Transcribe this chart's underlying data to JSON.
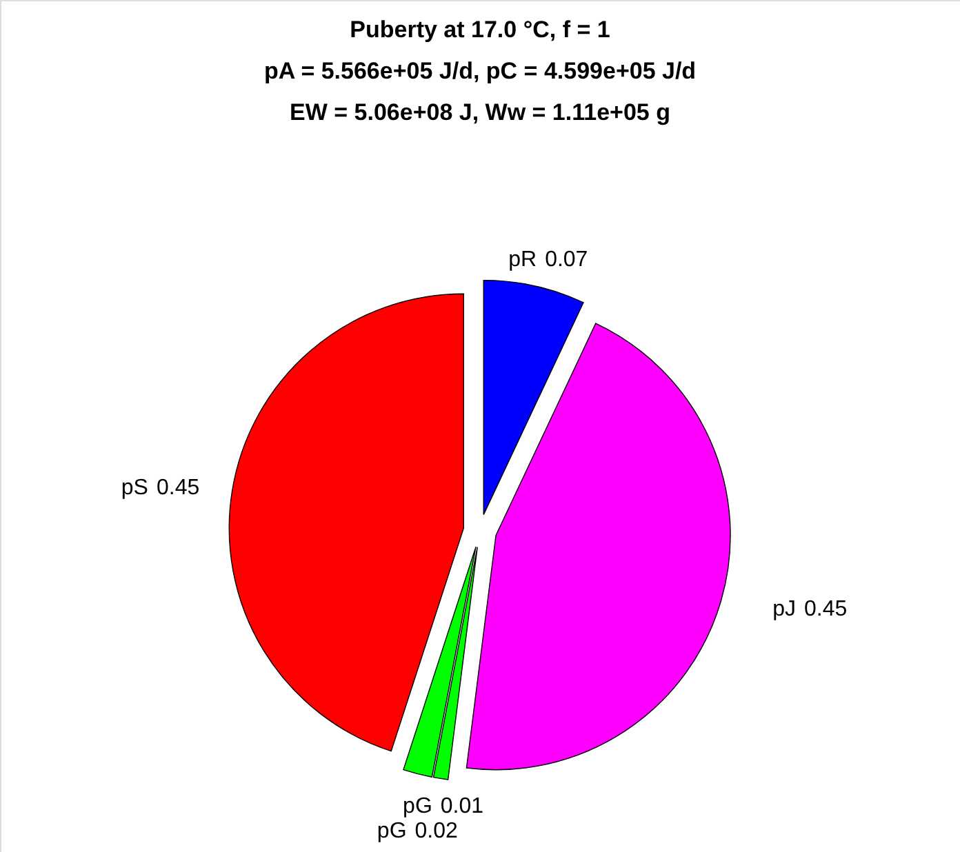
{
  "chart_data": {
    "type": "pie",
    "title": "Puberty at 17.0 °C, f = 1",
    "subtitle": [
      "pA = 5.566e+05 J/d,  pC = 4.599e+05 J/d",
      "EW = 5.06e+08 J, Ww = 1.11e+05 g"
    ],
    "categories": [
      "pR",
      "pJ",
      "pG",
      "pG",
      "pS"
    ],
    "values": [
      0.07,
      0.45,
      0.01,
      0.02,
      0.45
    ],
    "colors": [
      "#0000ff",
      "#ff00ff",
      "#00ff00",
      "#00ff00",
      "#ff0000"
    ],
    "data_labels": true
  }
}
